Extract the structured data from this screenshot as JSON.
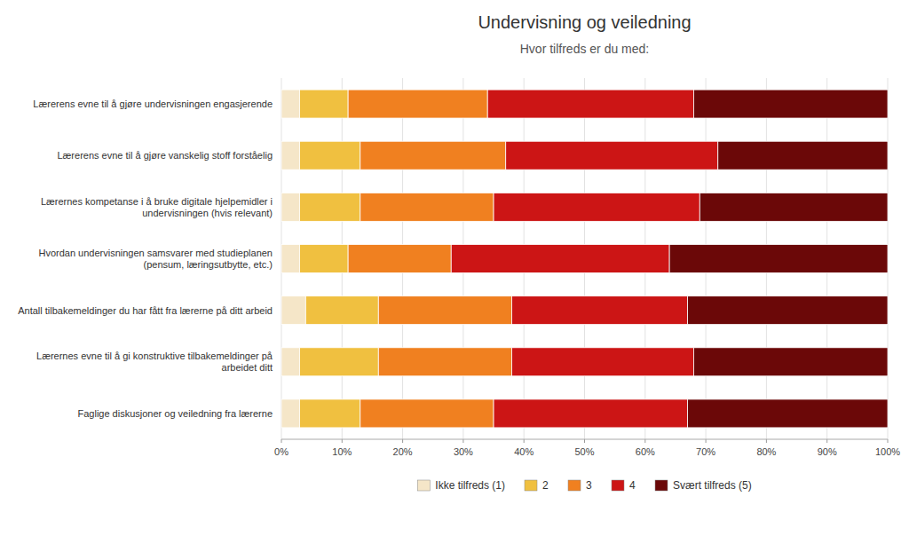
{
  "chart_data": {
    "type": "bar",
    "orientation": "horizontal",
    "stacked": true,
    "title": "Undervisning og veiledning",
    "subtitle": "Hvor tilfreds er du med:",
    "categories": [
      "Lærerens evne til å gjøre undervisningen engasjerende",
      "Lærerens evne til å gjøre vanskelig stoff forståelig",
      "Lærernes kompetanse i å bruke digitale hjelpemidler i\nundervisningen (hvis relevant)",
      "Hvordan undervisningen samsvarer med studieplanen\n(pensum, læringsutbytte, etc.)",
      "Antall tilbakemeldinger du har fått fra lærerne på ditt arbeid",
      "Lærernes evne til å gi konstruktive tilbakemeldinger på\narbeidet ditt",
      "Faglige diskusjoner og veiledning fra lærerne"
    ],
    "series": [
      {
        "name": "Ikke tilfreds (1)",
        "color": "#F5E6C8",
        "values": [
          3,
          3,
          3,
          3,
          4,
          3,
          3
        ]
      },
      {
        "name": "2",
        "color": "#F0C040",
        "values": [
          8,
          10,
          10,
          8,
          12,
          13,
          10
        ]
      },
      {
        "name": "3",
        "color": "#F08020",
        "values": [
          23,
          24,
          22,
          17,
          22,
          22,
          22
        ]
      },
      {
        "name": "4",
        "color": "#CC1515",
        "values": [
          34,
          35,
          34,
          36,
          29,
          30,
          32
        ]
      },
      {
        "name": "Svært tilfreds (5)",
        "color": "#6B0808",
        "values": [
          32,
          28,
          31,
          36,
          33,
          32,
          33
        ]
      }
    ],
    "xlim": [
      0,
      100
    ],
    "xticks": [
      {
        "value": 0,
        "label": "0%"
      },
      {
        "value": 10,
        "label": "10%"
      },
      {
        "value": 20,
        "label": "20%"
      },
      {
        "value": 30,
        "label": "30%"
      },
      {
        "value": 40,
        "label": "40%"
      },
      {
        "value": 50,
        "label": "50%"
      },
      {
        "value": 60,
        "label": "60%"
      },
      {
        "value": 70,
        "label": "70%"
      },
      {
        "value": 80,
        "label": "80%"
      },
      {
        "value": 90,
        "label": "90%"
      },
      {
        "value": 100,
        "label": "100%"
      }
    ],
    "grid": true,
    "legend": "bottom"
  }
}
